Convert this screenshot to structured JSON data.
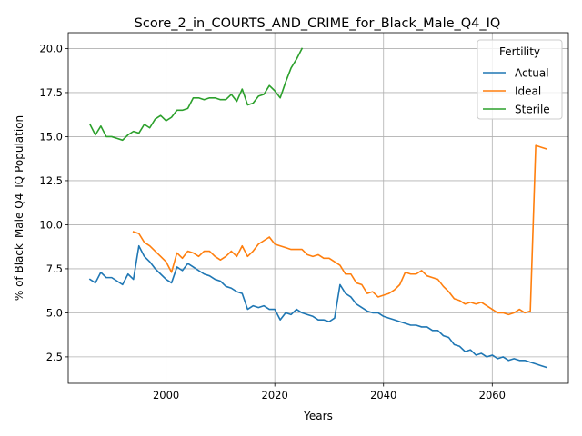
{
  "chart_data": {
    "type": "line",
    "title": "Score_2_in_COURTS_AND_CRIME_for_Black_Male_Q4_IQ",
    "xlabel": "Years",
    "ylabel": "% of Black_Male Q4_IQ Population",
    "xlim": [
      1982,
      2074
    ],
    "ylim": [
      1.0,
      20.9
    ],
    "xticks": [
      2000,
      2020,
      2040,
      2060
    ],
    "yticks": [
      2.5,
      5.0,
      7.5,
      10.0,
      12.5,
      15.0,
      17.5,
      20.0
    ],
    "grid": true,
    "legend": {
      "title": "Fertility",
      "placement": "top-right"
    },
    "series": [
      {
        "name": "Actual",
        "color": "#1f77b4",
        "x": [
          1986,
          1987,
          1988,
          1989,
          1990,
          1991,
          1992,
          1993,
          1994,
          1995,
          1996,
          1997,
          1998,
          1999,
          2000,
          2001,
          2002,
          2003,
          2004,
          2005,
          2006,
          2007,
          2008,
          2009,
          2010,
          2011,
          2012,
          2013,
          2014,
          2015,
          2016,
          2017,
          2018,
          2019,
          2020,
          2021,
          2022,
          2023,
          2024,
          2025,
          2026,
          2027,
          2028,
          2029,
          2030,
          2031,
          2032,
          2033,
          2034,
          2035,
          2036,
          2037,
          2038,
          2039,
          2040,
          2041,
          2042,
          2043,
          2044,
          2045,
          2046,
          2047,
          2048,
          2049,
          2050,
          2051,
          2052,
          2053,
          2054,
          2055,
          2056,
          2057,
          2058,
          2059,
          2060,
          2061,
          2062,
          2063,
          2064,
          2065,
          2066,
          2067,
          2068,
          2069,
          2070
        ],
        "values": [
          6.9,
          6.7,
          7.3,
          7.0,
          7.0,
          6.8,
          6.6,
          7.2,
          6.9,
          8.8,
          8.2,
          7.9,
          7.5,
          7.2,
          6.9,
          6.7,
          7.6,
          7.4,
          7.8,
          7.6,
          7.4,
          7.2,
          7.1,
          6.9,
          6.8,
          6.5,
          6.4,
          6.2,
          6.1,
          5.2,
          5.4,
          5.3,
          5.4,
          5.2,
          5.2,
          4.6,
          5.0,
          4.9,
          5.2,
          5.0,
          4.9,
          4.8,
          4.6,
          4.6,
          4.5,
          4.7,
          6.6,
          6.1,
          5.9,
          5.5,
          5.3,
          5.1,
          5.0,
          5.0,
          4.8,
          4.7,
          4.6,
          4.5,
          4.4,
          4.3,
          4.3,
          4.2,
          4.2,
          4.0,
          4.0,
          3.7,
          3.6,
          3.2,
          3.1,
          2.8,
          2.9,
          2.6,
          2.7,
          2.5,
          2.6,
          2.4,
          2.5,
          2.3,
          2.4,
          2.3,
          2.3,
          2.2,
          2.1,
          2.0,
          1.9
        ]
      },
      {
        "name": "Ideal",
        "color": "#ff7f0e",
        "x": [
          1994,
          1995,
          1996,
          1997,
          1998,
          1999,
          2000,
          2001,
          2002,
          2003,
          2004,
          2005,
          2006,
          2007,
          2008,
          2009,
          2010,
          2011,
          2012,
          2013,
          2014,
          2015,
          2016,
          2017,
          2018,
          2019,
          2020,
          2021,
          2022,
          2023,
          2024,
          2025,
          2026,
          2027,
          2028,
          2029,
          2030,
          2031,
          2032,
          2033,
          2034,
          2035,
          2036,
          2037,
          2038,
          2039,
          2040,
          2041,
          2042,
          2043,
          2044,
          2045,
          2046,
          2047,
          2048,
          2049,
          2050,
          2051,
          2052,
          2053,
          2054,
          2055,
          2056,
          2057,
          2058,
          2059,
          2060,
          2061,
          2062,
          2063,
          2064,
          2065,
          2066,
          2067,
          2068,
          2069,
          2070
        ],
        "values": [
          9.6,
          9.5,
          9.0,
          8.8,
          8.5,
          8.2,
          7.9,
          7.3,
          8.4,
          8.1,
          8.5,
          8.4,
          8.2,
          8.5,
          8.5,
          8.2,
          8.0,
          8.2,
          8.5,
          8.2,
          8.8,
          8.2,
          8.5,
          8.9,
          9.1,
          9.3,
          8.9,
          8.8,
          8.7,
          8.6,
          8.6,
          8.6,
          8.3,
          8.2,
          8.3,
          8.1,
          8.1,
          7.9,
          7.7,
          7.2,
          7.2,
          6.7,
          6.6,
          6.1,
          6.2,
          5.9,
          6.0,
          6.1,
          6.3,
          6.6,
          7.3,
          7.2,
          7.2,
          7.4,
          7.1,
          7.0,
          6.9,
          6.5,
          6.2,
          5.8,
          5.7,
          5.5,
          5.6,
          5.5,
          5.6,
          5.4,
          5.2,
          5.0,
          5.0,
          4.9,
          5.0,
          5.2,
          5.0,
          5.1,
          14.5,
          14.4,
          14.3
        ]
      },
      {
        "name": "Sterile",
        "color": "#2ca02c",
        "x": [
          1986,
          1987,
          1988,
          1989,
          1990,
          1991,
          1992,
          1993,
          1994,
          1995,
          1996,
          1997,
          1998,
          1999,
          2000,
          2001,
          2002,
          2003,
          2004,
          2005,
          2006,
          2007,
          2008,
          2009,
          2010,
          2011,
          2012,
          2013,
          2014,
          2015,
          2016,
          2017,
          2018,
          2019,
          2020,
          2021,
          2022,
          2023,
          2024,
          2025
        ],
        "values": [
          15.7,
          15.1,
          15.6,
          15.0,
          15.0,
          14.9,
          14.8,
          15.1,
          15.3,
          15.2,
          15.7,
          15.5,
          16.0,
          16.2,
          15.9,
          16.1,
          16.5,
          16.5,
          16.6,
          17.2,
          17.2,
          17.1,
          17.2,
          17.2,
          17.1,
          17.1,
          17.4,
          17.0,
          17.7,
          16.8,
          16.9,
          17.3,
          17.4,
          17.9,
          17.6,
          17.2,
          18.1,
          18.9,
          19.4,
          20.0
        ]
      }
    ]
  }
}
